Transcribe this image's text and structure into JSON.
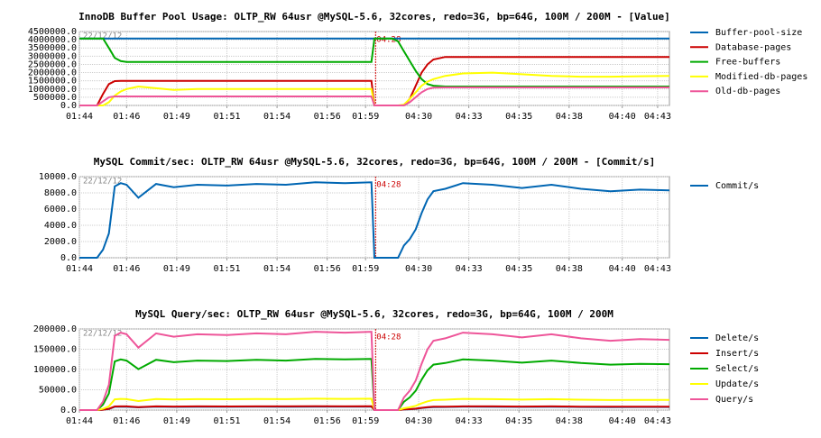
{
  "chart_data": [
    {
      "type": "line",
      "title": "InnoDB Buffer Pool Usage: OLTP_RW 64usr @MySQL-5.6, 32cores, redo=3G, bp=64G, 100M / 200M - [Value]",
      "date_label": "22/12/12",
      "marker": {
        "x": 50.2,
        "label": "04:28",
        "color": "#cc0000"
      },
      "grid": true,
      "legend": "right",
      "xlim": [
        0,
        100
      ],
      "xticks": [
        {
          "value": 0,
          "label": "01:44"
        },
        {
          "value": 8,
          "label": "01:46"
        },
        {
          "value": 16.5,
          "label": "01:49"
        },
        {
          "value": 25,
          "label": "01:51"
        },
        {
          "value": 33.5,
          "label": "01:54"
        },
        {
          "value": 42,
          "label": "01:56"
        },
        {
          "value": 48.5,
          "label": "01:59"
        },
        {
          "value": 57.5,
          "label": "04:30"
        },
        {
          "value": 66,
          "label": "04:33"
        },
        {
          "value": 74.5,
          "label": "04:35"
        },
        {
          "value": 83,
          "label": "04:38"
        },
        {
          "value": 92,
          "label": "04:40"
        },
        {
          "value": 98,
          "label": "04:43"
        }
      ],
      "ylim": [
        0,
        4500000
      ],
      "yticks": [
        {
          "value": 0,
          "label": "0.0"
        },
        {
          "value": 500000,
          "label": "500000.0"
        },
        {
          "value": 1000000,
          "label": "1000000.0"
        },
        {
          "value": 1500000,
          "label": "1500000.0"
        },
        {
          "value": 2000000,
          "label": "2000000.0"
        },
        {
          "value": 2500000,
          "label": "2500000.0"
        },
        {
          "value": 3000000,
          "label": "3000000.0"
        },
        {
          "value": 3500000,
          "label": "3500000.0"
        },
        {
          "value": 4000000,
          "label": "4000000.0"
        },
        {
          "value": 4500000,
          "label": "4500000.0"
        }
      ],
      "x": [
        0,
        2,
        3,
        4,
        5,
        6,
        7,
        8,
        10,
        13,
        16,
        20,
        25,
        30,
        35,
        40,
        45,
        49.5,
        50,
        51,
        53,
        54,
        55,
        56,
        57,
        58,
        59,
        60,
        62,
        65,
        70,
        75,
        80,
        85,
        90,
        95,
        100
      ],
      "series": [
        {
          "name": "Buffer-pool-size",
          "color": "#0066b3",
          "values": [
            4080000,
            4080000,
            4080000,
            4080000,
            4080000,
            4080000,
            4080000,
            4080000,
            4080000,
            4080000,
            4080000,
            4080000,
            4080000,
            4080000,
            4080000,
            4080000,
            4080000,
            4080000,
            4080000,
            4080000,
            4080000,
            4080000,
            4080000,
            4080000,
            4080000,
            4080000,
            4080000,
            4080000,
            4080000,
            4080000,
            4080000,
            4080000,
            4080000,
            4080000,
            4080000,
            4080000,
            4080000
          ]
        },
        {
          "name": "Database-pages",
          "color": "#cc0000",
          "values": [
            0,
            0,
            0,
            700000,
            1300000,
            1480000,
            1500000,
            1500000,
            1500000,
            1500000,
            1500000,
            1500000,
            1500000,
            1500000,
            1500000,
            1500000,
            1500000,
            1500000,
            0,
            0,
            0,
            0,
            0,
            400000,
            1200000,
            2000000,
            2500000,
            2800000,
            2950000,
            2950000,
            2950000,
            2950000,
            2950000,
            2950000,
            2950000,
            2950000,
            2950000
          ]
        },
        {
          "name": "Free-buffers",
          "color": "#00aa00",
          "values": [
            4080000,
            4080000,
            4080000,
            4080000,
            3500000,
            2900000,
            2700000,
            2650000,
            2650000,
            2650000,
            2650000,
            2650000,
            2650000,
            2650000,
            2650000,
            2650000,
            2650000,
            2650000,
            4080000,
            4080000,
            4080000,
            3900000,
            3300000,
            2700000,
            2100000,
            1600000,
            1300000,
            1200000,
            1150000,
            1150000,
            1150000,
            1150000,
            1150000,
            1150000,
            1150000,
            1150000,
            1150000
          ]
        },
        {
          "name": "Modified-db-pages",
          "color": "#ffff00",
          "values": [
            0,
            0,
            0,
            0,
            200000,
            600000,
            850000,
            1000000,
            1150000,
            1050000,
            950000,
            1000000,
            1000000,
            1000000,
            1000000,
            1000000,
            1000000,
            1000000,
            0,
            0,
            0,
            0,
            50000,
            400000,
            800000,
            1200000,
            1450000,
            1600000,
            1800000,
            1950000,
            2000000,
            1900000,
            1800000,
            1750000,
            1750000,
            1780000,
            1800000
          ]
        },
        {
          "name": "Old-db-pages",
          "color": "#ee5599",
          "values": [
            0,
            0,
            0,
            250000,
            500000,
            550000,
            550000,
            550000,
            550000,
            550000,
            550000,
            550000,
            550000,
            550000,
            550000,
            550000,
            550000,
            550000,
            0,
            0,
            0,
            0,
            0,
            200000,
            500000,
            800000,
            1000000,
            1080000,
            1100000,
            1100000,
            1100000,
            1100000,
            1100000,
            1100000,
            1100000,
            1100000,
            1100000
          ]
        }
      ]
    },
    {
      "type": "line",
      "title": "MySQL Commit/sec: OLTP_RW 64usr @MySQL-5.6, 32cores, redo=3G, bp=64G, 100M / 200M - [Commit/s]",
      "date_label": "22/12/12",
      "marker": {
        "x": 50.2,
        "label": "04:28",
        "color": "#cc0000"
      },
      "grid": true,
      "legend": "right",
      "xlim": [
        0,
        100
      ],
      "xticks": [
        {
          "value": 0,
          "label": "01:44"
        },
        {
          "value": 8,
          "label": "01:46"
        },
        {
          "value": 16.5,
          "label": "01:49"
        },
        {
          "value": 25,
          "label": "01:51"
        },
        {
          "value": 33.5,
          "label": "01:54"
        },
        {
          "value": 42,
          "label": "01:56"
        },
        {
          "value": 48.5,
          "label": "01:59"
        },
        {
          "value": 57.5,
          "label": "04:30"
        },
        {
          "value": 66,
          "label": "04:33"
        },
        {
          "value": 74.5,
          "label": "04:35"
        },
        {
          "value": 83,
          "label": "04:38"
        },
        {
          "value": 92,
          "label": "04:40"
        },
        {
          "value": 98,
          "label": "04:43"
        }
      ],
      "ylim": [
        0,
        10000
      ],
      "yticks": [
        {
          "value": 0,
          "label": "0.0"
        },
        {
          "value": 2000,
          "label": "2000.0"
        },
        {
          "value": 4000,
          "label": "4000.0"
        },
        {
          "value": 6000,
          "label": "6000.0"
        },
        {
          "value": 8000,
          "label": "8000.0"
        },
        {
          "value": 10000,
          "label": "10000.0"
        }
      ],
      "x": [
        0,
        2,
        3,
        4,
        5,
        6,
        7,
        8,
        10,
        13,
        16,
        20,
        25,
        30,
        35,
        40,
        45,
        49.5,
        50,
        51,
        53,
        54,
        55,
        56,
        57,
        58,
        59,
        60,
        62,
        65,
        70,
        75,
        80,
        85,
        90,
        95,
        100
      ],
      "series": [
        {
          "name": "Commit/s",
          "color": "#0066b3",
          "values": [
            0,
            0,
            0,
            1000,
            3000,
            8800,
            9200,
            9000,
            7400,
            9100,
            8700,
            9000,
            8900,
            9100,
            9000,
            9300,
            9200,
            9300,
            0,
            0,
            0,
            0,
            1500,
            2300,
            3500,
            5500,
            7200,
            8200,
            8500,
            9200,
            9000,
            8600,
            9000,
            8500,
            8200,
            8400,
            8300
          ]
        }
      ]
    },
    {
      "type": "line",
      "title": "MySQL Query/sec: OLTP_RW 64usr @MySQL-5.6, 32cores, redo=3G, bp=64G, 100M / 200M",
      "date_label": "22/12/12",
      "marker": {
        "x": 50.2,
        "label": "04:28",
        "color": "#cc0000"
      },
      "grid": true,
      "legend": "right",
      "xlim": [
        0,
        100
      ],
      "xticks": [
        {
          "value": 0,
          "label": "01:44"
        },
        {
          "value": 8,
          "label": "01:46"
        },
        {
          "value": 16.5,
          "label": "01:49"
        },
        {
          "value": 25,
          "label": "01:51"
        },
        {
          "value": 33.5,
          "label": "01:54"
        },
        {
          "value": 42,
          "label": "01:56"
        },
        {
          "value": 48.5,
          "label": "01:59"
        },
        {
          "value": 57.5,
          "label": "04:30"
        },
        {
          "value": 66,
          "label": "04:33"
        },
        {
          "value": 74.5,
          "label": "04:35"
        },
        {
          "value": 83,
          "label": "04:38"
        },
        {
          "value": 92,
          "label": "04:40"
        },
        {
          "value": 98,
          "label": "04:43"
        }
      ],
      "ylim": [
        0,
        200000
      ],
      "yticks": [
        {
          "value": 0,
          "label": "0.0"
        },
        {
          "value": 50000,
          "label": "50000.0"
        },
        {
          "value": 100000,
          "label": "100000.0"
        },
        {
          "value": 150000,
          "label": "150000.0"
        },
        {
          "value": 200000,
          "label": "200000.0"
        }
      ],
      "x": [
        0,
        2,
        3,
        4,
        5,
        6,
        7,
        8,
        10,
        13,
        16,
        20,
        25,
        30,
        35,
        40,
        45,
        49.5,
        50,
        51,
        53,
        54,
        55,
        56,
        57,
        58,
        59,
        60,
        62,
        65,
        70,
        75,
        80,
        85,
        90,
        95,
        100
      ],
      "series": [
        {
          "name": "Delete/s",
          "color": "#0066b3",
          "values": [
            0,
            0,
            0,
            900,
            2700,
            7900,
            8300,
            8100,
            6700,
            8200,
            7800,
            8100,
            8000,
            8200,
            8100,
            8400,
            8300,
            8400,
            0,
            0,
            0,
            0,
            1350,
            2070,
            3150,
            4950,
            6480,
            7380,
            7650,
            8280,
            8100,
            7740,
            8100,
            7650,
            7380,
            7560,
            7470
          ]
        },
        {
          "name": "Insert/s",
          "color": "#cc0000",
          "values": [
            0,
            0,
            0,
            1000,
            3000,
            8800,
            9200,
            9000,
            7400,
            9100,
            8700,
            9000,
            8900,
            9100,
            9000,
            9300,
            9200,
            9300,
            0,
            0,
            0,
            0,
            1500,
            2300,
            3500,
            5500,
            7200,
            8200,
            8500,
            9200,
            9000,
            8600,
            9000,
            8500,
            8200,
            8400,
            8300
          ]
        },
        {
          "name": "Select/s",
          "color": "#00aa00",
          "values": [
            0,
            0,
            0,
            13600,
            40800,
            120000,
            125000,
            122000,
            101000,
            124000,
            118000,
            122000,
            121000,
            124000,
            122000,
            126000,
            125000,
            126000,
            0,
            0,
            0,
            0,
            20400,
            31300,
            47600,
            74800,
            97900,
            112000,
            116000,
            125000,
            122000,
            117000,
            122000,
            116000,
            112000,
            114000,
            113000
          ]
        },
        {
          "name": "Update/s",
          "color": "#ffff00",
          "values": [
            0,
            0,
            0,
            3000,
            9000,
            26400,
            27600,
            27000,
            22200,
            27300,
            26100,
            27000,
            26700,
            27300,
            27000,
            27900,
            27600,
            27900,
            0,
            0,
            0,
            0,
            4500,
            6900,
            10500,
            16500,
            21600,
            24600,
            25500,
            27600,
            27000,
            25800,
            27000,
            25500,
            24600,
            25200,
            24900
          ]
        },
        {
          "name": "Query/s",
          "color": "#ee5599",
          "values": [
            0,
            0,
            0,
            20800,
            62400,
            183000,
            191000,
            187000,
            154000,
            189000,
            181000,
            187000,
            185000,
            189000,
            187000,
            193000,
            191000,
            193000,
            0,
            0,
            0,
            0,
            31200,
            47800,
            72800,
            114000,
            150000,
            171000,
            177000,
            191000,
            187000,
            179000,
            187000,
            177000,
            171000,
            175000,
            173000
          ]
        }
      ]
    }
  ]
}
